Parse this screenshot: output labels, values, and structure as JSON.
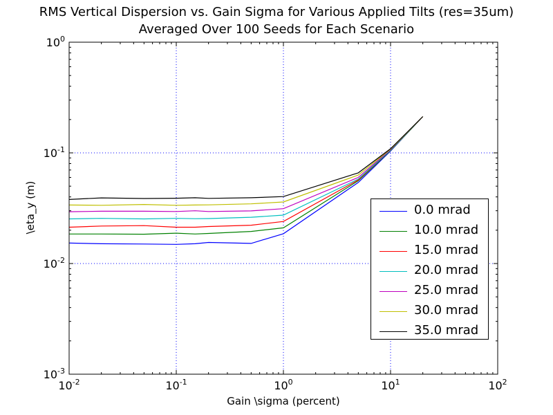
{
  "chart_data": {
    "type": "line",
    "title": "RMS Vertical Dispersion vs. Gain Sigma for Various Applied Tilts (res=35um)",
    "subtitle": "Averaged Over 100 Seeds for Each Scenario",
    "xlabel": "Gain \\sigma (percent)",
    "ylabel": "\\eta_y (m)",
    "xscale": "log",
    "yscale": "log",
    "xlim": [
      0.01,
      100
    ],
    "ylim": [
      0.001,
      1
    ],
    "grid": "dotted blue at decades",
    "legend_position": "center-right",
    "x_ticks": [
      {
        "value": 0.01,
        "base": "10",
        "exp": "-2"
      },
      {
        "value": 0.1,
        "base": "10",
        "exp": "-1"
      },
      {
        "value": 1,
        "base": "10",
        "exp": "0"
      },
      {
        "value": 10,
        "base": "10",
        "exp": "1"
      },
      {
        "value": 100,
        "base": "10",
        "exp": "2"
      }
    ],
    "y_ticks": [
      {
        "value": 0.001,
        "base": "10",
        "exp": "-3"
      },
      {
        "value": 0.01,
        "base": "10",
        "exp": "-2"
      },
      {
        "value": 0.1,
        "base": "10",
        "exp": "-1"
      },
      {
        "value": 1,
        "base": "10",
        "exp": "0"
      }
    ],
    "x": [
      0.01,
      0.02,
      0.05,
      0.1,
      0.15,
      0.2,
      0.5,
      1,
      5,
      10,
      15,
      20
    ],
    "series": [
      {
        "name": "0.0 mrad",
        "color": "#0000ff",
        "values": [
          0.0153,
          0.0151,
          0.015,
          0.0149,
          0.0151,
          0.0155,
          0.0152,
          0.0186,
          0.054,
          0.104,
          0.158,
          0.213
        ]
      },
      {
        "name": "10.0 mrad",
        "color": "#008000",
        "values": [
          0.0185,
          0.0185,
          0.0184,
          0.0188,
          0.0185,
          0.0187,
          0.0195,
          0.021,
          0.056,
          0.105,
          0.158,
          0.213
        ]
      },
      {
        "name": "15.0 mrad",
        "color": "#ff0000",
        "values": [
          0.0213,
          0.0218,
          0.022,
          0.0213,
          0.0213,
          0.0216,
          0.0222,
          0.024,
          0.057,
          0.106,
          0.159,
          0.213
        ]
      },
      {
        "name": "20.0 mrad",
        "color": "#00bfbf",
        "values": [
          0.0253,
          0.0256,
          0.0253,
          0.0256,
          0.0254,
          0.0255,
          0.0262,
          0.0274,
          0.058,
          0.106,
          0.159,
          0.213
        ]
      },
      {
        "name": "25.0 mrad",
        "color": "#bf00bf",
        "values": [
          0.0294,
          0.0297,
          0.0297,
          0.0295,
          0.03,
          0.0295,
          0.0299,
          0.0313,
          0.06,
          0.107,
          0.16,
          0.213
        ]
      },
      {
        "name": "30.0 mrad",
        "color": "#bfbf00",
        "values": [
          0.0338,
          0.0336,
          0.0342,
          0.0336,
          0.0338,
          0.0339,
          0.0346,
          0.036,
          0.063,
          0.108,
          0.16,
          0.213
        ]
      },
      {
        "name": "35.0 mrad",
        "color": "#000000",
        "values": [
          0.0379,
          0.0392,
          0.0387,
          0.0389,
          0.0393,
          0.0388,
          0.0393,
          0.0403,
          0.066,
          0.109,
          0.161,
          0.213
        ]
      }
    ]
  }
}
